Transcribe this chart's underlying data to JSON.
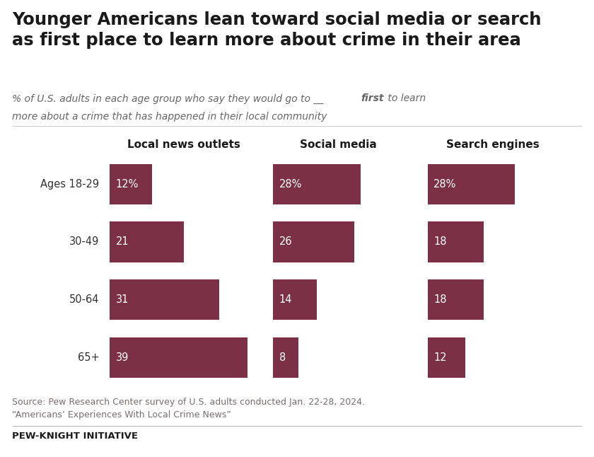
{
  "title_line1": "Younger Americans lean toward social media or search",
  "title_line2": "as first place to learn more about crime in their area",
  "subtitle_part1": "% of U.S. adults in each age group who say they would go to __",
  "subtitle_bold": "first",
  "subtitle_part2": " to learn",
  "subtitle_line2": "more about a crime that has happened in their local community",
  "age_groups": [
    "Ages 18-29",
    "30-49",
    "50-64",
    "65+"
  ],
  "categories": [
    "Local news outlets",
    "Social media",
    "Search engines"
  ],
  "data": {
    "Local news outlets": [
      12,
      21,
      31,
      39
    ],
    "Social media": [
      28,
      26,
      14,
      8
    ],
    "Search engines": [
      28,
      18,
      18,
      12
    ]
  },
  "percent_labels": {
    "Local news outlets": [
      "12%",
      "21",
      "31",
      "39"
    ],
    "Social media": [
      "28%",
      "26",
      "14",
      "8"
    ],
    "Search engines": [
      "28%",
      "18",
      "18",
      "12"
    ]
  },
  "bar_color": "#7b3045",
  "background_color": "#ffffff",
  "title_color": "#1a1a1a",
  "subtitle_color": "#666666",
  "label_color": "#333333",
  "source_color": "#7a6e6e",
  "footer_color": "#1a1a1a",
  "source_text_line1": "Source: Pew Research Center survey of U.S. adults conducted Jan. 22-28, 2024.",
  "source_text_line2": "“Americans’ Experiences With Local Crime News”",
  "footer_text": "PEW-KNIGHT INITIATIVE",
  "max_value": 42
}
